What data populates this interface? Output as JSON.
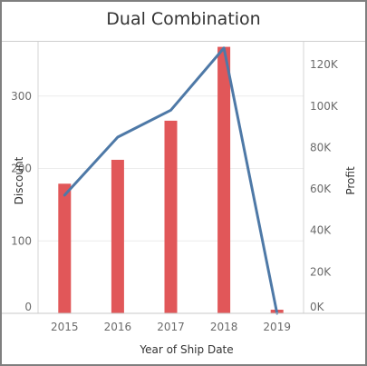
{
  "chart_data": {
    "type": "bar",
    "title": "Dual Combination",
    "xlabel": "Year of Ship Date",
    "categories": [
      "2015",
      "2016",
      "2017",
      "2018",
      "2019"
    ],
    "series": [
      {
        "name": "Discount",
        "chart": "bar",
        "axis": "left",
        "values": [
          179,
          212,
          266,
          368,
          5
        ]
      },
      {
        "name": "Profit",
        "chart": "line",
        "axis": "right",
        "values": [
          57000,
          85000,
          98000,
          128000,
          0
        ]
      }
    ],
    "y_left": {
      "label": "Discount",
      "lim": [
        0,
        375
      ],
      "ticks": [
        0,
        100,
        200,
        300
      ],
      "tick_labels": [
        "0",
        "100",
        "200",
        "300"
      ]
    },
    "y_right": {
      "label": "Profit",
      "lim": [
        0,
        131000
      ],
      "ticks": [
        0,
        20000,
        40000,
        60000,
        80000,
        100000,
        120000
      ],
      "tick_labels": [
        "0K",
        "20K",
        "40K",
        "60K",
        "80K",
        "100K",
        "120K"
      ]
    },
    "grid": true,
    "colors": {
      "bar": "#e15759",
      "line": "#4e79a7"
    }
  }
}
